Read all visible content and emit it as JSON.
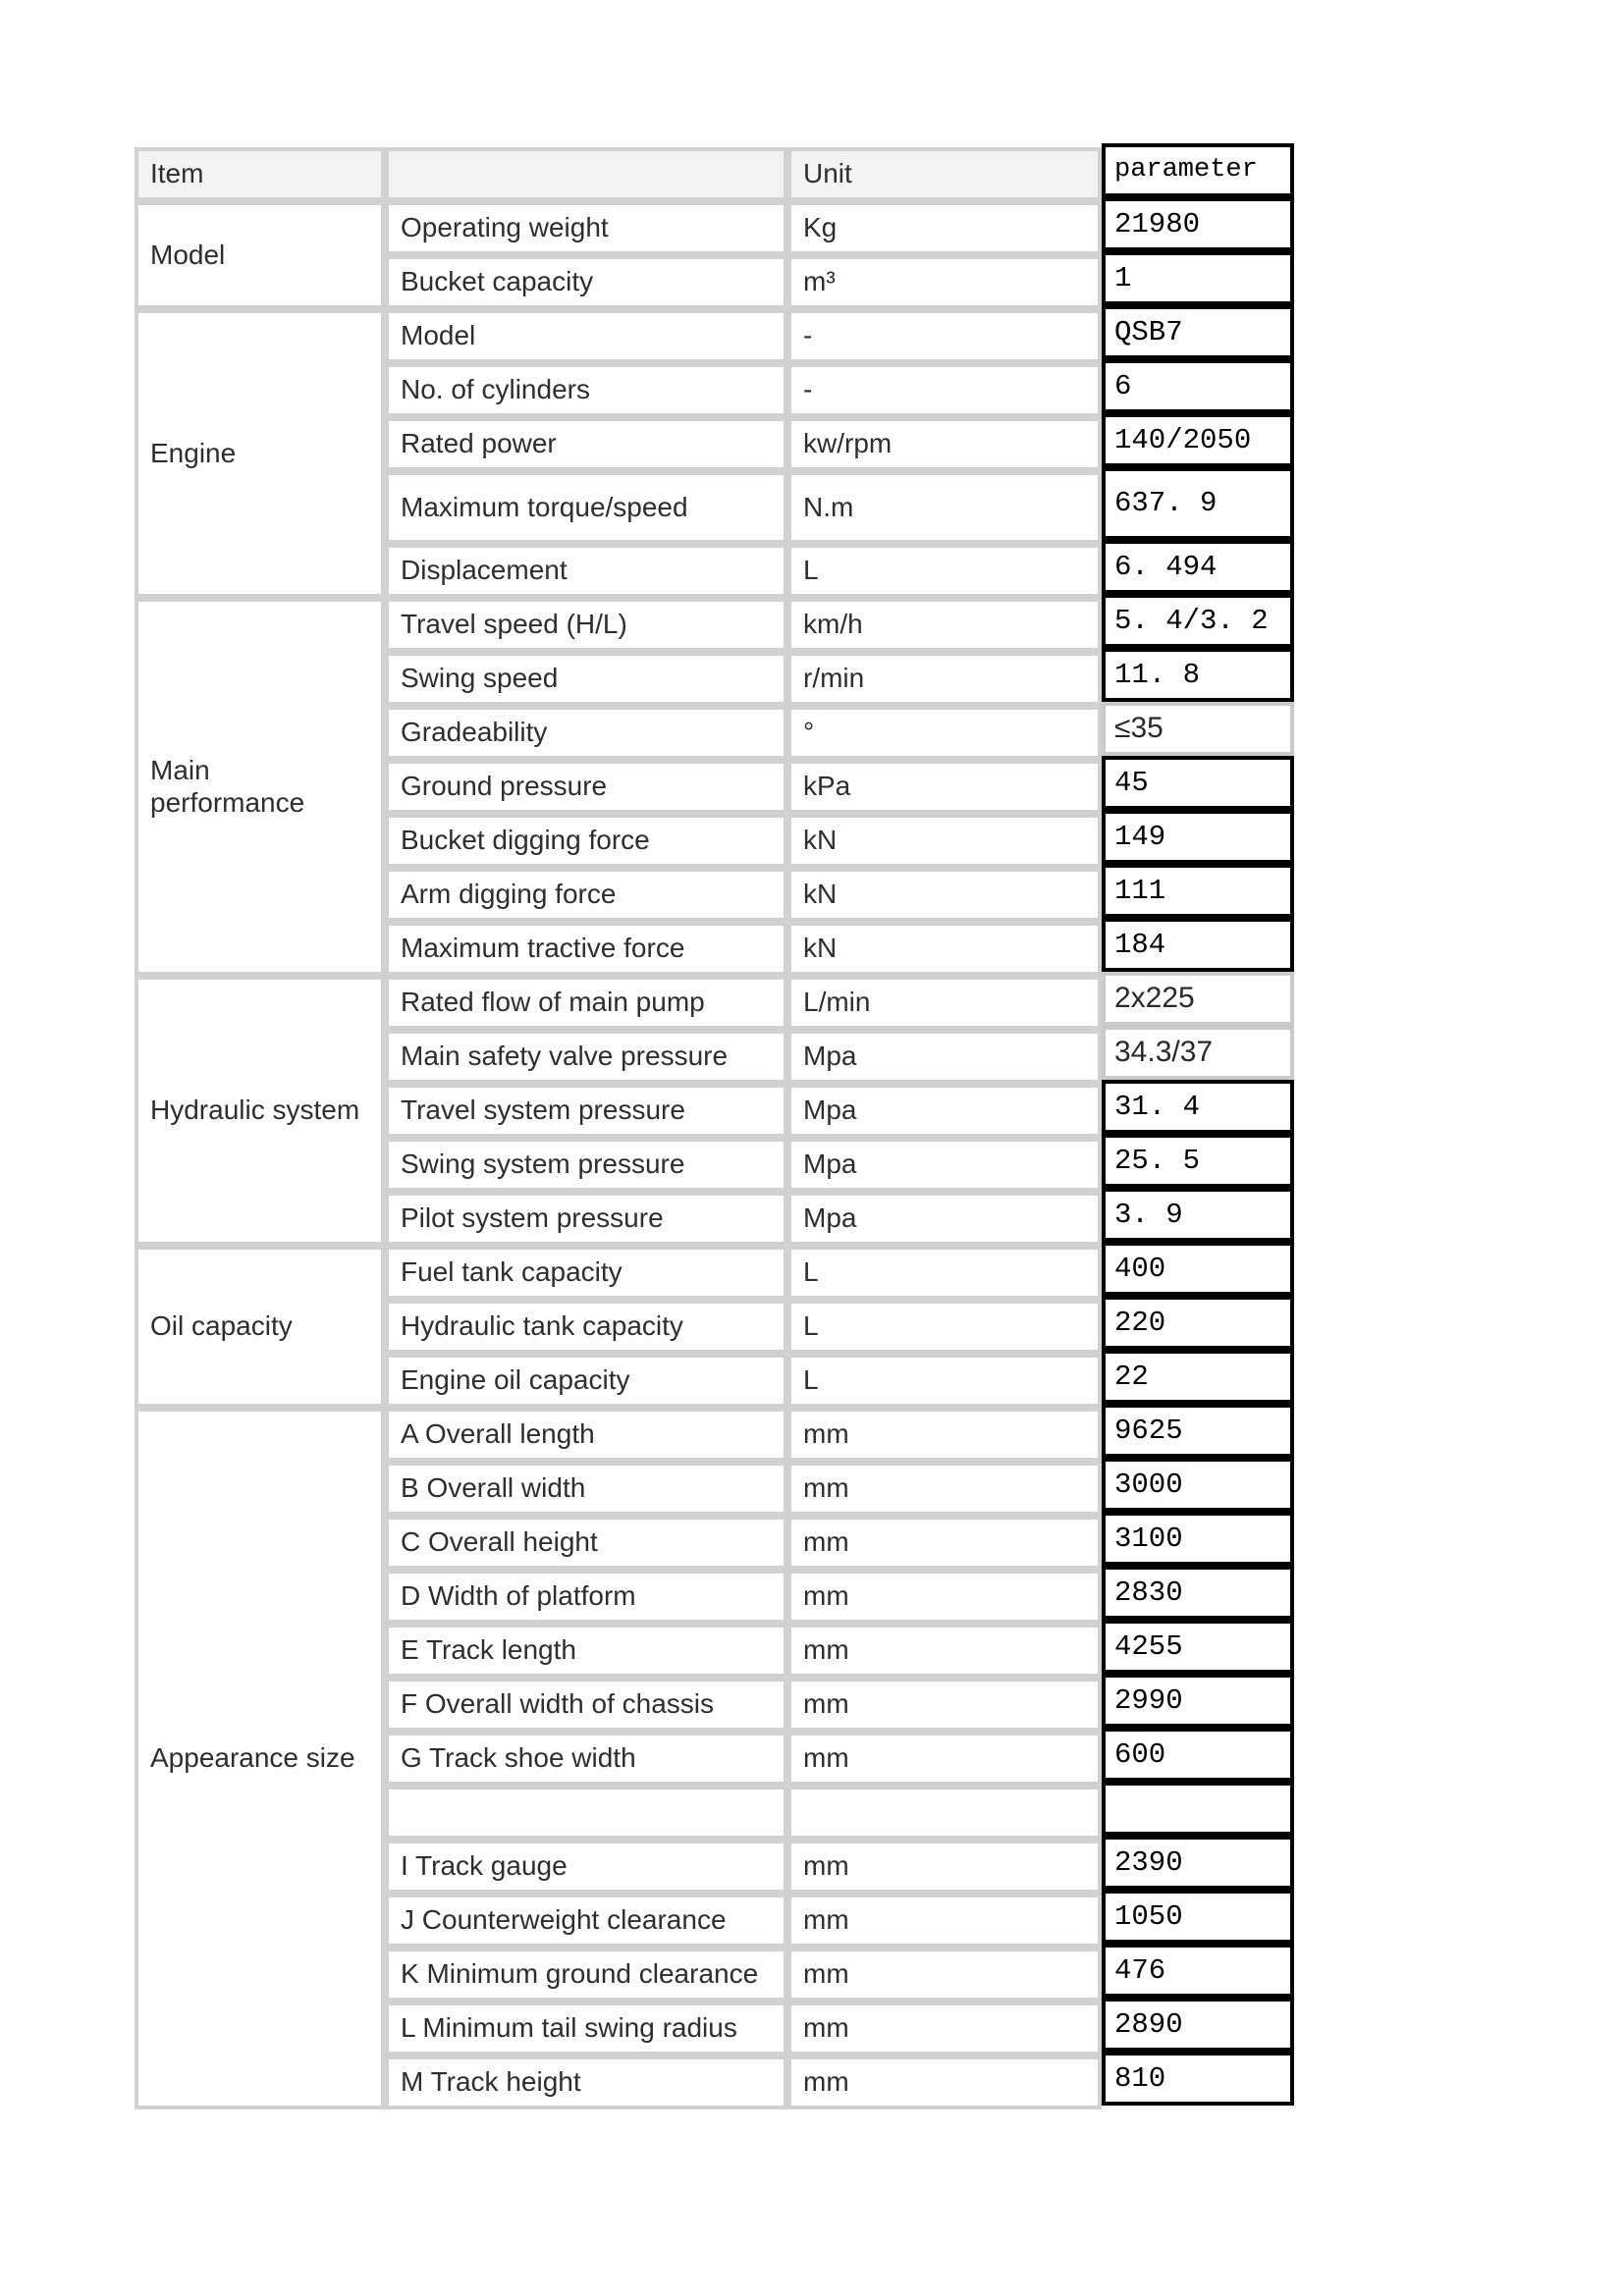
{
  "page": {
    "background": "#ffffff"
  },
  "colors": {
    "grid_border": "#d0d1d2",
    "param_border": "#000000",
    "header_bg": "#f2f3f5",
    "text": "#2e2e2e",
    "param_text": "#000000"
  },
  "table": {
    "header": {
      "item": "Item",
      "sub": "",
      "unit": "Unit",
      "parameter": "parameter"
    },
    "groups": [
      {
        "label": "Model",
        "rows": [
          {
            "name": "Operating weight",
            "unit": "Kg",
            "value": "21980",
            "style": "mono"
          },
          {
            "name": "Bucket capacity",
            "unit": "m³",
            "value": "1",
            "style": "mono"
          }
        ]
      },
      {
        "label": "Engine",
        "rows": [
          {
            "name": "Model",
            "unit": "-",
            "value": "QSB7",
            "style": "mono"
          },
          {
            "name": "No. of cylinders",
            "unit": "-",
            "value": "6",
            "style": "mono"
          },
          {
            "name": "Rated power",
            "unit": "kw/rpm",
            "value": "140/2050",
            "style": "mono"
          },
          {
            "name": "Maximum torque/speed",
            "unit": "N.m",
            "value": "637. 9",
            "style": "mono",
            "tall": true
          },
          {
            "name": "Displacement",
            "unit": "L",
            "value": "6. 494",
            "style": "mono"
          }
        ]
      },
      {
        "label": "Main performance",
        "wrap": true,
        "rows": [
          {
            "name": "Travel speed (H/L)",
            "unit": "km/h",
            "value": "5. 4/3. 2",
            "style": "mono"
          },
          {
            "name": "Swing speed",
            "unit": "r/min",
            "value": "11. 8",
            "style": "mono"
          },
          {
            "name": "Gradeability",
            "unit": "°",
            "value": "≤35",
            "style": "sans"
          },
          {
            "name": "Ground pressure",
            "unit": "kPa",
            "value": "45",
            "style": "mono"
          },
          {
            "name": "Bucket digging force",
            "unit": "kN",
            "value": "149",
            "style": "mono"
          },
          {
            "name": "Arm digging force",
            "unit": "kN",
            "value": "111",
            "style": "mono"
          },
          {
            "name": "Maximum tractive force",
            "unit": "kN",
            "value": "184",
            "style": "mono"
          }
        ]
      },
      {
        "label": "Hydraulic system",
        "rows": [
          {
            "name": "Rated flow of main pump",
            "unit": "L/min",
            "value": "2x225",
            "style": "sans"
          },
          {
            "name": "Main safety valve pressure",
            "unit": "Mpa",
            "value": "34.3/37",
            "style": "sans"
          },
          {
            "name": "Travel system pressure",
            "unit": "Mpa",
            "value": "31. 4",
            "style": "mono"
          },
          {
            "name": "Swing system pressure",
            "unit": "Mpa",
            "value": "25. 5",
            "style": "mono"
          },
          {
            "name": "Pilot system pressure",
            "unit": "Mpa",
            "value": "3. 9",
            "style": "mono"
          }
        ]
      },
      {
        "label": "Oil capacity",
        "rows": [
          {
            "name": "Fuel tank capacity",
            "unit": "L",
            "value": "400",
            "style": "mono"
          },
          {
            "name": "Hydraulic tank capacity",
            "unit": "L",
            "value": "220",
            "style": "mono"
          },
          {
            "name": "Engine oil capacity",
            "unit": "L",
            "value": "22",
            "style": "mono"
          }
        ]
      },
      {
        "label": "Appearance size",
        "rows": [
          {
            "name": "A Overall length",
            "unit": "mm",
            "value": "9625",
            "style": "mono"
          },
          {
            "name": "B Overall width",
            "unit": "mm",
            "value": "3000",
            "style": "mono"
          },
          {
            "name": "C Overall height",
            "unit": "mm",
            "value": "3100",
            "style": "mono"
          },
          {
            "name": "D Width of platform",
            "unit": "mm",
            "value": "2830",
            "style": "mono"
          },
          {
            "name": "E Track length",
            "unit": "mm",
            "value": "4255",
            "style": "mono"
          },
          {
            "name": "F Overall width of chassis",
            "unit": "mm",
            "value": "2990",
            "style": "mono"
          },
          {
            "name": "G Track shoe width",
            "unit": "mm",
            "value": "600",
            "style": "mono"
          },
          {
            "name": "",
            "unit": "",
            "value": "",
            "style": "mono"
          },
          {
            "name": "I Track gauge",
            "unit": "mm",
            "value": "2390",
            "style": "mono"
          },
          {
            "name": "J Counterweight clearance",
            "unit": "mm",
            "value": "1050",
            "style": "mono"
          },
          {
            "name": "K Minimum ground clearance",
            "unit": "mm",
            "value": "476",
            "style": "mono"
          },
          {
            "name": "L Minimum tail swing radius",
            "unit": "mm",
            "value": "2890",
            "style": "mono"
          },
          {
            "name": "M Track height",
            "unit": "mm",
            "value": "810",
            "style": "mono"
          }
        ]
      }
    ]
  }
}
